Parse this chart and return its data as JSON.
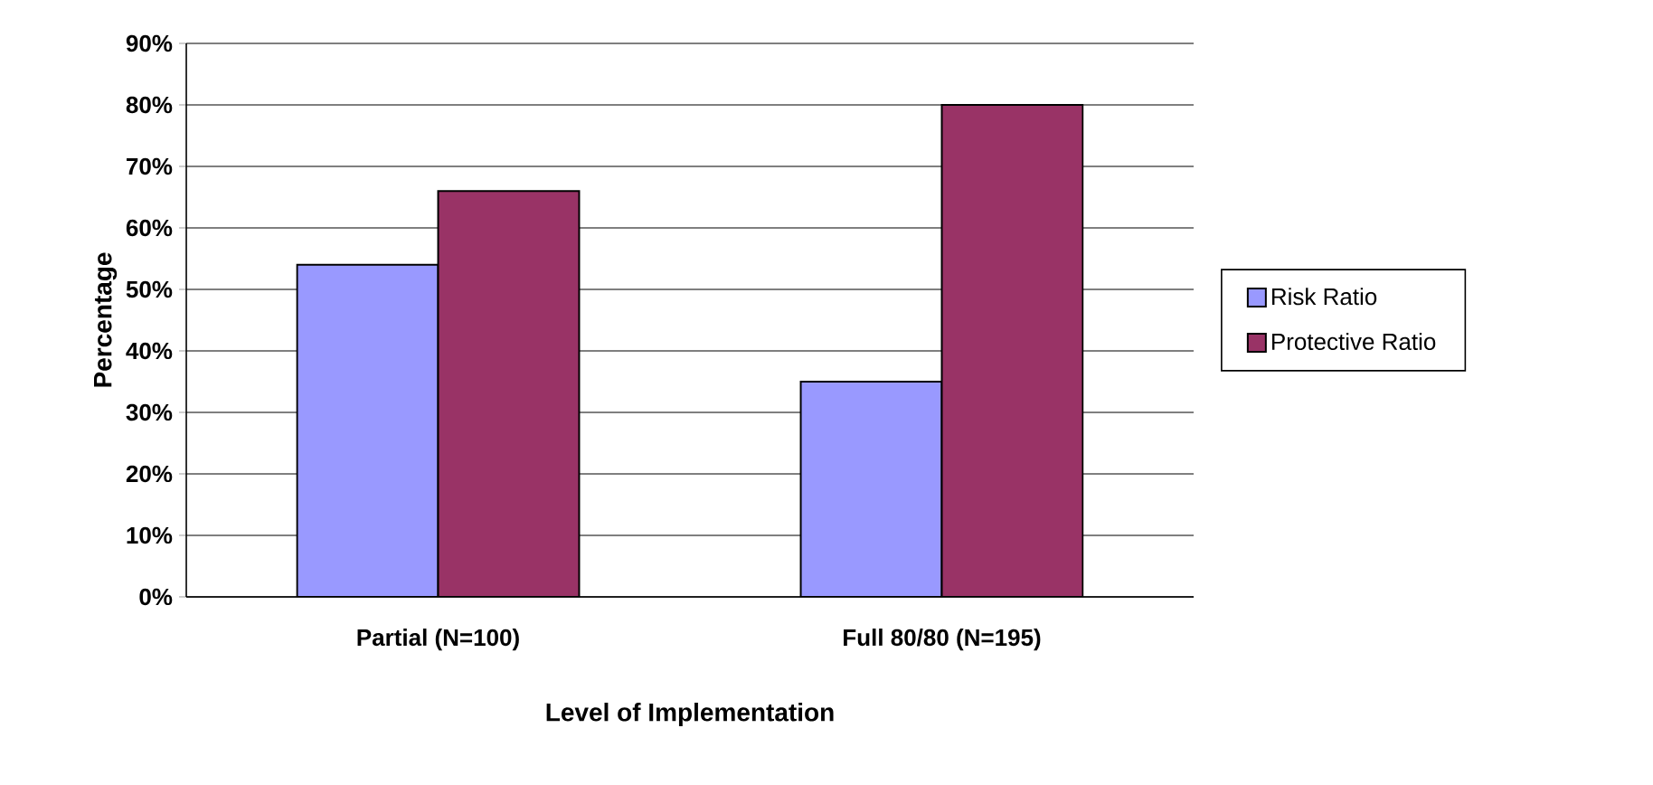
{
  "chart_data": {
    "type": "bar",
    "xlabel": "Level of Implementation",
    "ylabel": "Percentage",
    "categories": [
      "Partial  (N=100)",
      "Full 80/80  (N=195)"
    ],
    "series": [
      {
        "name": "Risk Ratio",
        "color": "#9999ff",
        "values": [
          54,
          35
        ]
      },
      {
        "name": "Protective Ratio",
        "color": "#993366",
        "values": [
          66,
          80
        ]
      }
    ],
    "ylim": [
      0,
      90
    ],
    "yticks": [
      {
        "value": 0,
        "label": "0%"
      },
      {
        "value": 10,
        "label": "10%"
      },
      {
        "value": 20,
        "label": "20%"
      },
      {
        "value": 30,
        "label": "30%"
      },
      {
        "value": 40,
        "label": "40%"
      },
      {
        "value": 50,
        "label": "50%"
      },
      {
        "value": 60,
        "label": "60%"
      },
      {
        "value": 70,
        "label": "70%"
      },
      {
        "value": 80,
        "label": "80%"
      },
      {
        "value": 90,
        "label": "90%"
      }
    ],
    "grid": "y",
    "legend": "right"
  }
}
